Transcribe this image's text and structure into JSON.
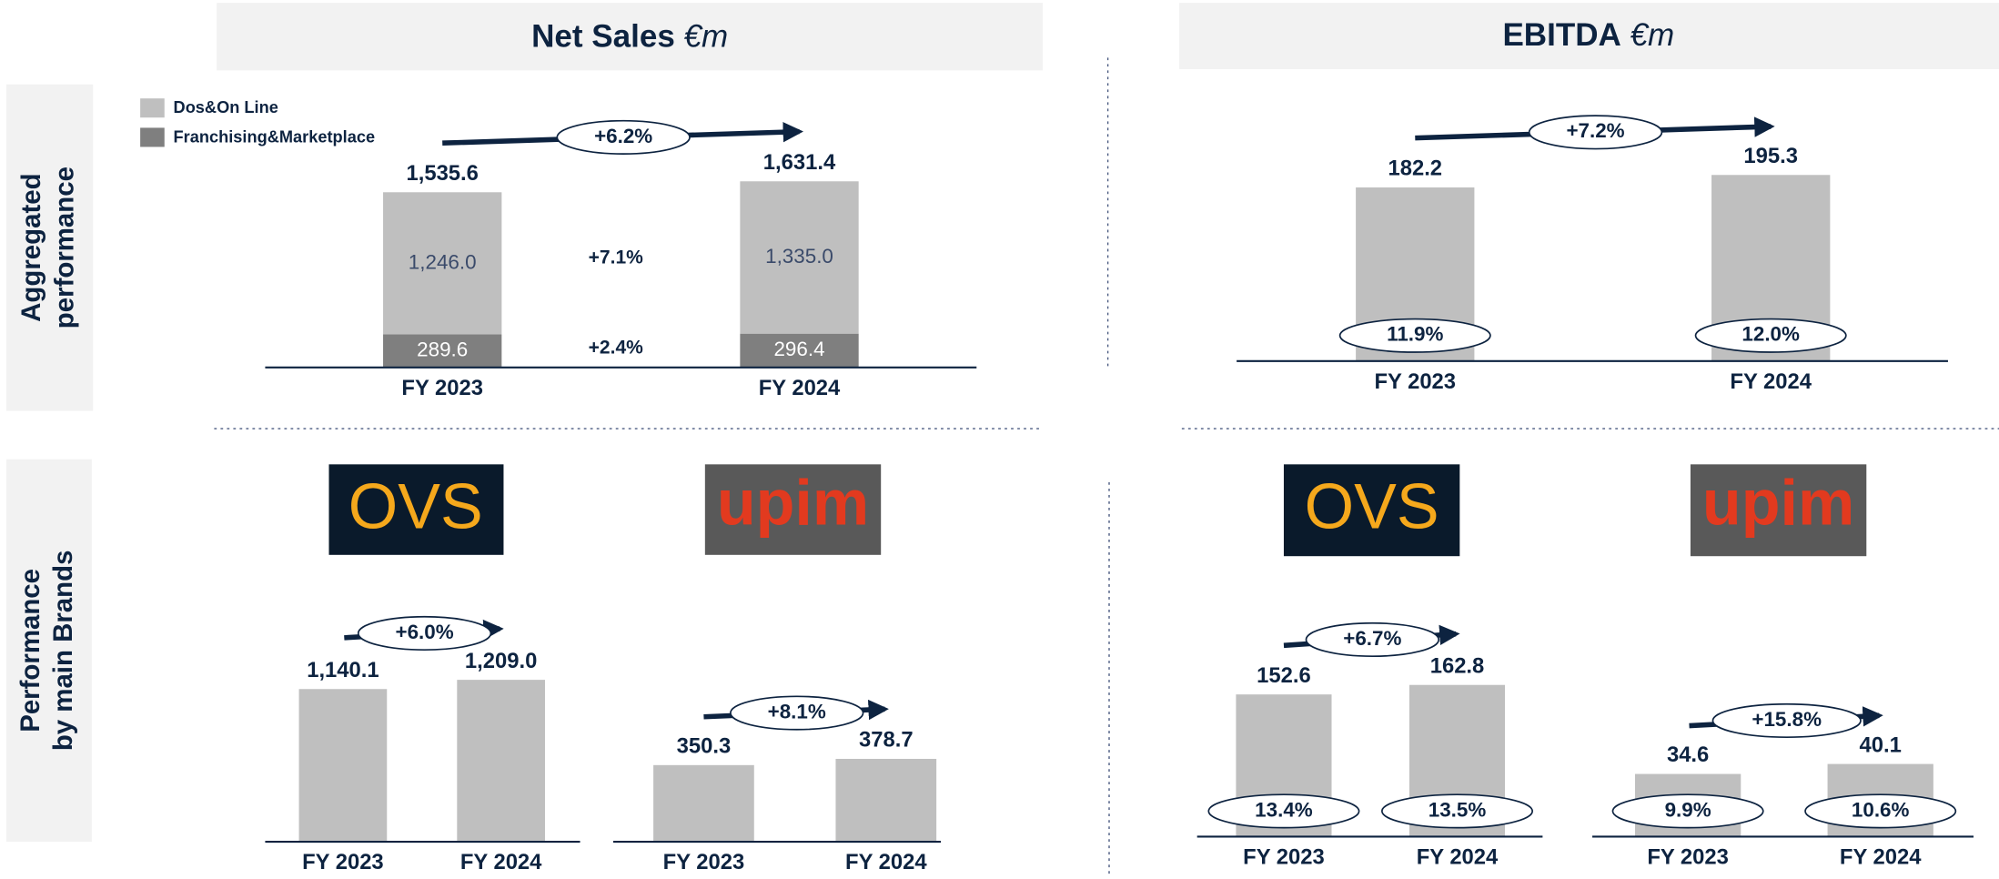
{
  "headers": [
    {
      "title": "Net Sales",
      "unit": "€m"
    },
    {
      "title": "EBITDA",
      "unit": "€m"
    }
  ],
  "sections": [
    [
      "Aggregated",
      "performance"
    ],
    [
      "Performance",
      "by main Brands"
    ]
  ],
  "brands": [
    "OVS",
    "upim",
    "OVS",
    "upim"
  ],
  "chart_data": [
    {
      "type": "stacked_bar",
      "categories": [
        "FY 2023",
        "FY 2024"
      ],
      "growth": "+6.2%",
      "total_labels": [
        "1,535.6",
        "1,631.4"
      ],
      "legend": true,
      "series": [
        {
          "name": "Franchising&Marketplace",
          "color": "#7f7f7f",
          "values": [
            289.6,
            296.4
          ],
          "growth": "+2.4%"
        },
        {
          "name": "Dos&On Line",
          "color": "#bfbfbf",
          "values": [
            1246.0,
            1335.0
          ],
          "value_labels": [
            "1,246.0",
            "1,335.0"
          ],
          "growth": "+7.1%"
        }
      ]
    },
    {
      "type": "bar",
      "categories": [
        "FY 2023",
        "FY 2024"
      ],
      "growth": "+7.2%",
      "margin_labels": [
        "11.9%",
        "12.0%"
      ],
      "series": [
        {
          "color": "#bfbfbf",
          "values": [
            182.2,
            195.3
          ]
        }
      ]
    },
    {
      "type": "bar",
      "categories": [
        "FY 2023",
        "FY 2024"
      ],
      "growth": "+6.0%",
      "series": [
        {
          "color": "#bfbfbf",
          "values": [
            1140.1,
            1209.0
          ],
          "value_labels": [
            "1,140.1",
            "1,209.0"
          ]
        }
      ]
    },
    {
      "type": "bar",
      "categories": [
        "FY 2023",
        "FY 2024"
      ],
      "growth": "+8.1%",
      "series": [
        {
          "color": "#bfbfbf",
          "values": [
            350.3,
            378.7
          ]
        }
      ]
    },
    {
      "type": "bar",
      "categories": [
        "FY 2023",
        "FY 2024"
      ],
      "growth": "+6.7%",
      "margin_labels": [
        "13.4%",
        "13.5%"
      ],
      "series": [
        {
          "color": "#bfbfbf",
          "values": [
            152.6,
            162.8
          ]
        }
      ]
    },
    {
      "type": "bar",
      "categories": [
        "FY 2023",
        "FY 2024"
      ],
      "growth": "+15.8%",
      "margin_labels": [
        "9.9%",
        "10.6%"
      ],
      "series": [
        {
          "color": "#bfbfbf",
          "values": [
            34.6,
            40.1
          ]
        }
      ]
    }
  ]
}
